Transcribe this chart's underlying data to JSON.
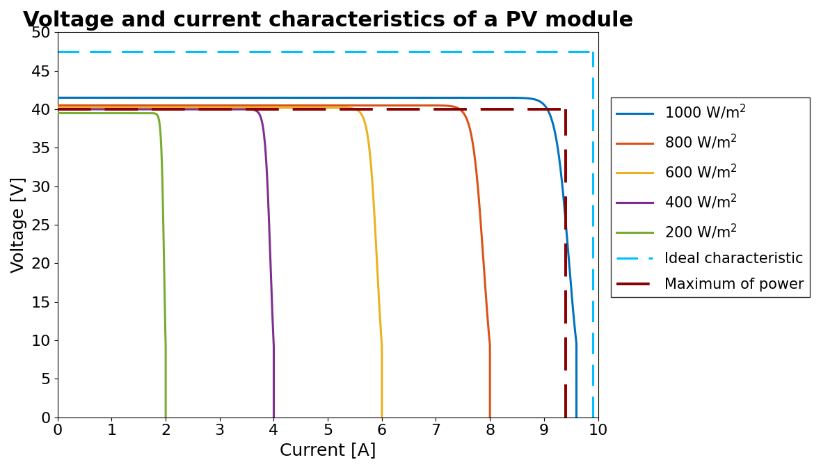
{
  "title": "Voltage and current characteristics of a PV module",
  "xlabel": "Current [A]",
  "ylabel": "Voltage [V]",
  "xlim": [
    0,
    10
  ],
  "ylim": [
    0,
    50
  ],
  "xticks": [
    0,
    1,
    2,
    3,
    4,
    5,
    6,
    7,
    8,
    9,
    10
  ],
  "yticks": [
    0,
    5,
    10,
    15,
    20,
    25,
    30,
    35,
    40,
    45,
    50
  ],
  "curves": [
    {
      "label": "1000 W/m$^2$",
      "color": "#0072BD",
      "isc": 9.6,
      "voc": 41.5,
      "sharp": 80
    },
    {
      "label": "800 W/m$^2$",
      "color": "#D95319",
      "isc": 8.0,
      "voc": 40.5,
      "sharp": 80
    },
    {
      "label": "600 W/m$^2$",
      "color": "#EDB120",
      "isc": 6.0,
      "voc": 40.2,
      "sharp": 80
    },
    {
      "label": "400 W/m$^2$",
      "color": "#7E2F8E",
      "isc": 4.0,
      "voc": 40.0,
      "sharp": 80
    },
    {
      "label": "200 W/m$^2$",
      "color": "#77AC30",
      "isc": 2.0,
      "voc": 39.5,
      "sharp": 80
    }
  ],
  "ideal_characteristic": {
    "label": "Ideal characteristic",
    "color": "#00BFFF",
    "v_flat": 47.5,
    "i_vertical": 9.9
  },
  "max_power": {
    "label": "Maximum of power",
    "color": "#8B0000",
    "current": 9.4,
    "voltage": 40.0
  },
  "line_width": 2.2,
  "title_fontsize": 22,
  "label_fontsize": 18,
  "tick_fontsize": 16,
  "legend_fontsize": 15,
  "background_color": "#FFFFFF"
}
